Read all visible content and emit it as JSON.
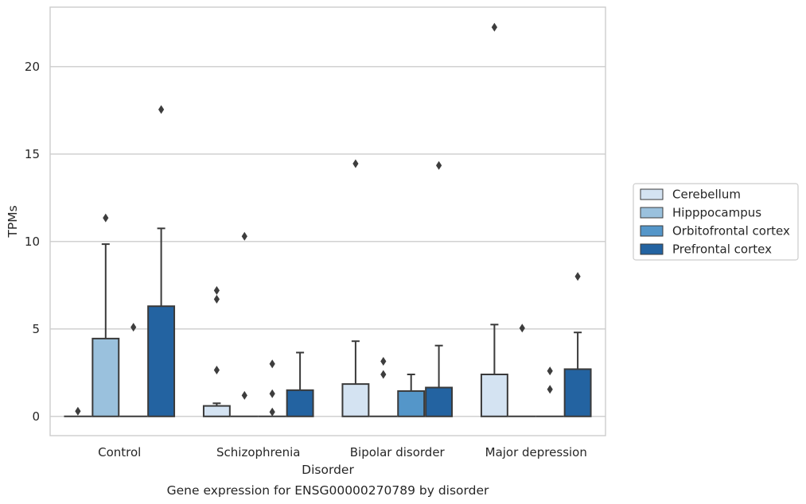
{
  "chart_data": {
    "type": "bar",
    "title": "Gene expression for ENSG00000270789 by disorder",
    "xlabel": "Disorder",
    "ylabel": "TPMs",
    "ylim": [
      -1.1,
      23.4
    ],
    "yticks": [
      0,
      5,
      10,
      15,
      20
    ],
    "categories": [
      "Control",
      "Schizophrenia",
      "Bipolar disorder",
      "Major depression"
    ],
    "grid": "horizontal",
    "legend_position": "right",
    "series": [
      {
        "name": "Cerebellum",
        "color": "#d4e3f2",
        "values": [
          0,
          0.6,
          1.85,
          2.4
        ],
        "error_upper": [
          null,
          0.75,
          4.3,
          5.25
        ],
        "outliers": [
          [
            0.3
          ],
          [
            2.65,
            6.7,
            7.2
          ],
          [
            14.45
          ],
          [
            22.25
          ]
        ]
      },
      {
        "name": "Hipppocampus",
        "color": "#9ac1dd",
        "values": [
          4.45,
          0,
          0,
          0
        ],
        "error_upper": [
          9.85,
          null,
          null,
          null
        ],
        "outliers": [
          [
            11.35
          ],
          [
            1.2,
            10.3
          ],
          [
            2.4,
            3.15
          ],
          [
            5.05
          ]
        ]
      },
      {
        "name": "Orbitofrontal cortex",
        "color": "#5496c9",
        "values": [
          0,
          0,
          1.45,
          0
        ],
        "error_upper": [
          null,
          null,
          2.4,
          null
        ],
        "outliers": [
          [
            5.1
          ],
          [
            0.25,
            1.3,
            3.0
          ],
          [],
          [
            1.55,
            2.6
          ]
        ]
      },
      {
        "name": "Prefrontal cortex",
        "color": "#2363a1",
        "values": [
          6.3,
          1.5,
          1.65,
          2.7
        ],
        "error_upper": [
          10.75,
          3.65,
          4.05,
          4.8
        ],
        "outliers": [
          [
            17.55
          ],
          [],
          [
            14.35
          ],
          [
            8.0
          ]
        ]
      }
    ]
  }
}
